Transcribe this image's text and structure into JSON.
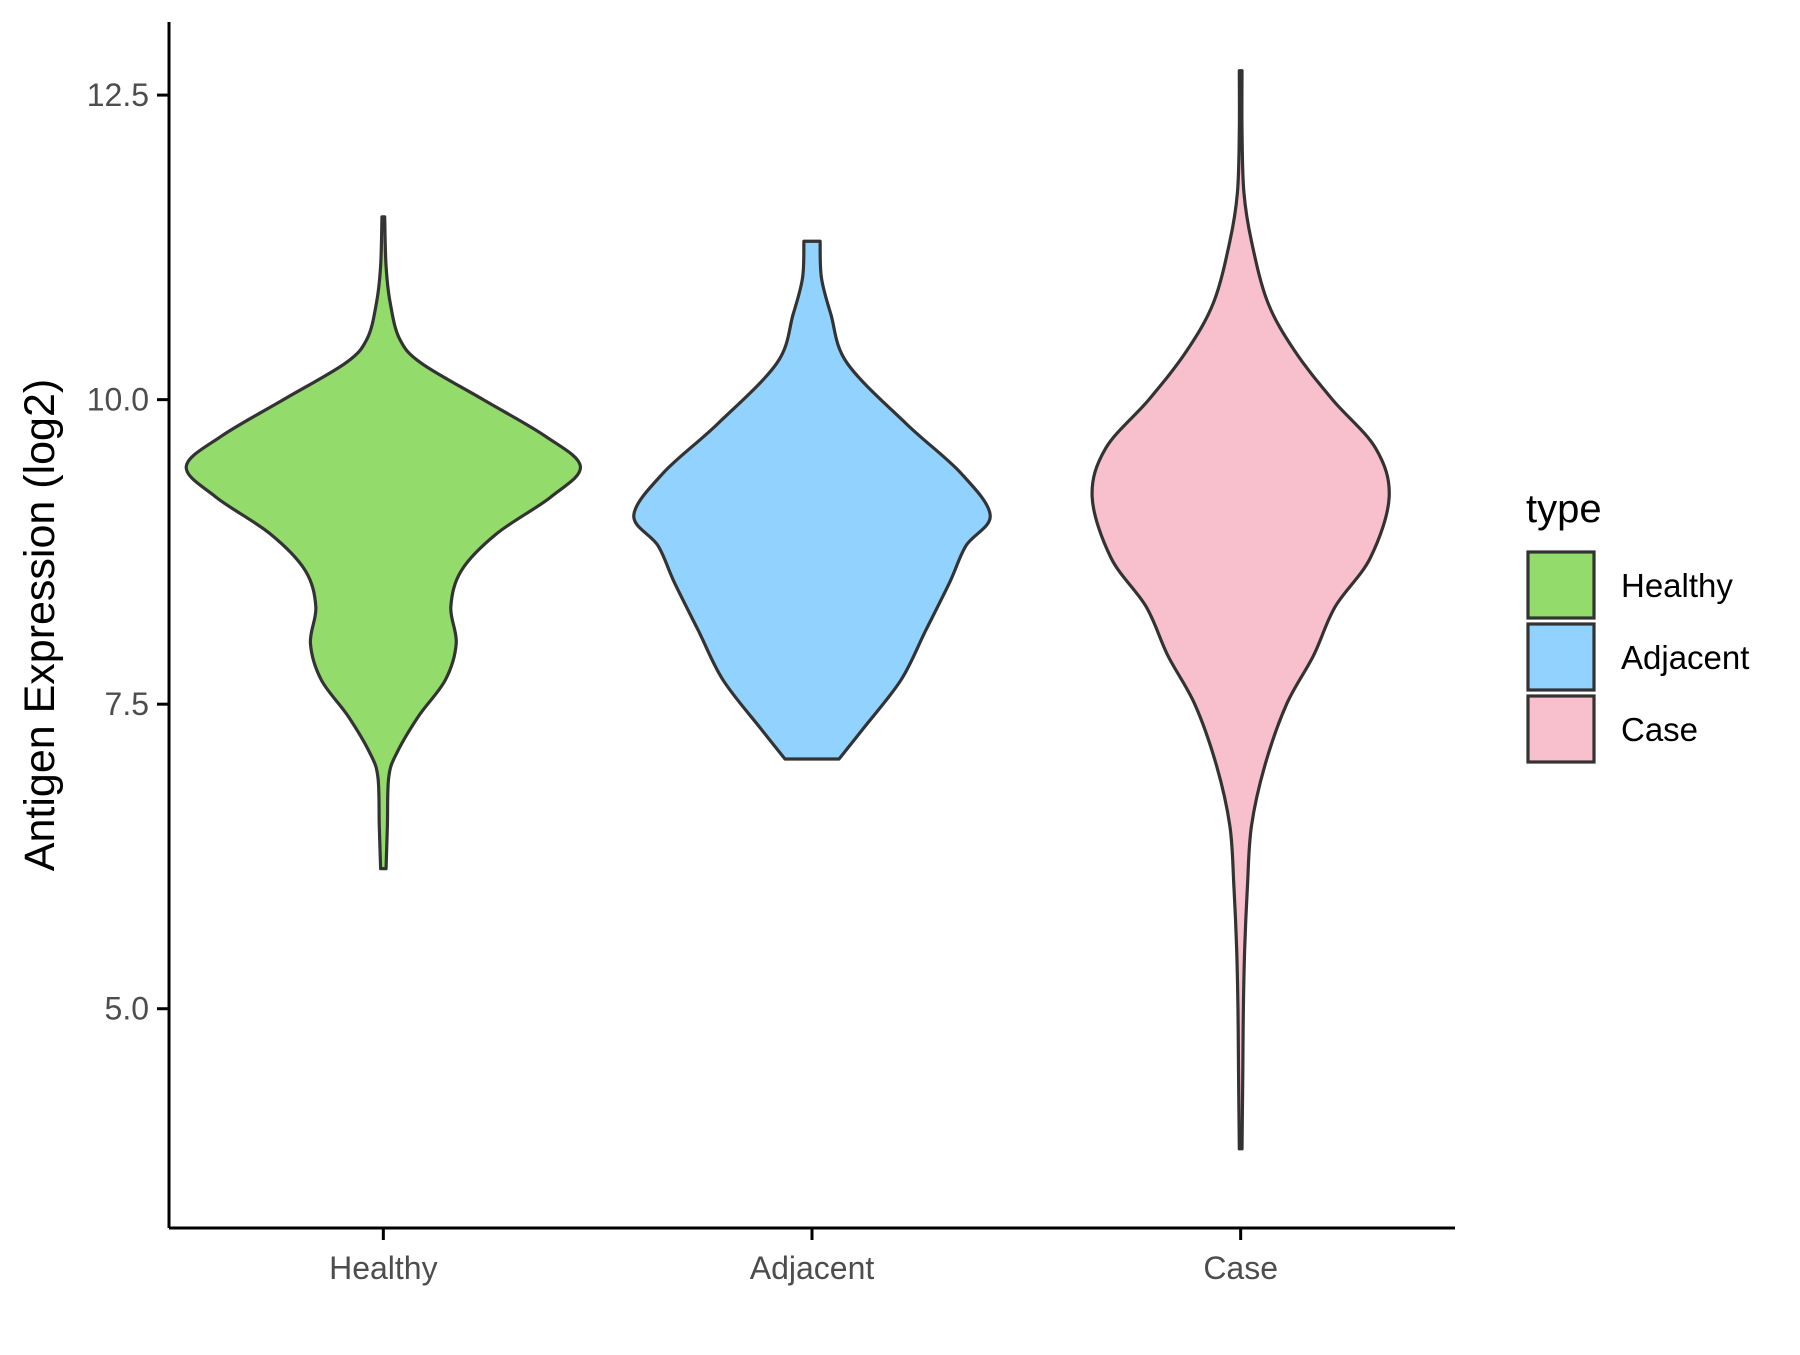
{
  "chart_data": {
    "type": "violin",
    "ylabel": "Antigen Expression (log2)",
    "xlabel": "",
    "ylim": [
      3.2,
      13.1
    ],
    "yticks": [
      "5.0",
      "7.5",
      "10.0",
      "12.5"
    ],
    "categories": [
      "Healthy",
      "Adjacent",
      "Case"
    ],
    "legend": {
      "title": "type",
      "position": "right",
      "entries": [
        "Healthy",
        "Adjacent",
        "Case"
      ]
    },
    "grid": false,
    "outline_color": "#333333",
    "series": [
      {
        "name": "Healthy",
        "color": "#93DB6A",
        "range": [
          6.15,
          11.5
        ],
        "profile": [
          [
            6.15,
            0.01
          ],
          [
            6.5,
            0.015
          ],
          [
            6.9,
            0.02
          ],
          [
            7.1,
            0.05
          ],
          [
            7.4,
            0.13
          ],
          [
            7.7,
            0.23
          ],
          [
            8.0,
            0.27
          ],
          [
            8.3,
            0.25
          ],
          [
            8.6,
            0.29
          ],
          [
            8.9,
            0.42
          ],
          [
            9.2,
            0.62
          ],
          [
            9.45,
            0.73
          ],
          [
            9.7,
            0.6
          ],
          [
            10.0,
            0.37
          ],
          [
            10.3,
            0.14
          ],
          [
            10.5,
            0.06
          ],
          [
            10.8,
            0.025
          ],
          [
            11.1,
            0.01
          ],
          [
            11.5,
            0.005
          ]
        ]
      },
      {
        "name": "Adjacent",
        "color": "#92D2FE",
        "range": [
          7.05,
          11.3
        ],
        "profile": [
          [
            7.05,
            0.1
          ],
          [
            7.3,
            0.19
          ],
          [
            7.7,
            0.33
          ],
          [
            8.1,
            0.42
          ],
          [
            8.5,
            0.51
          ],
          [
            8.8,
            0.57
          ],
          [
            9.05,
            0.66
          ],
          [
            9.4,
            0.55
          ],
          [
            9.8,
            0.35
          ],
          [
            10.3,
            0.13
          ],
          [
            10.7,
            0.07
          ],
          [
            11.0,
            0.035
          ],
          [
            11.3,
            0.03
          ]
        ]
      },
      {
        "name": "Case",
        "color": "#F8C0CC",
        "range": [
          3.85,
          12.7
        ],
        "profile": [
          [
            3.85,
            0.005
          ],
          [
            4.5,
            0.008
          ],
          [
            5.0,
            0.01
          ],
          [
            5.5,
            0.015
          ],
          [
            6.0,
            0.025
          ],
          [
            6.5,
            0.04
          ],
          [
            7.0,
            0.09
          ],
          [
            7.5,
            0.17
          ],
          [
            7.9,
            0.27
          ],
          [
            8.3,
            0.35
          ],
          [
            8.7,
            0.48
          ],
          [
            9.2,
            0.55
          ],
          [
            9.6,
            0.5
          ],
          [
            10.0,
            0.34
          ],
          [
            10.4,
            0.2
          ],
          [
            10.8,
            0.1
          ],
          [
            11.3,
            0.04
          ],
          [
            11.7,
            0.012
          ],
          [
            12.2,
            0.005
          ],
          [
            12.7,
            0.005
          ]
        ]
      }
    ]
  }
}
